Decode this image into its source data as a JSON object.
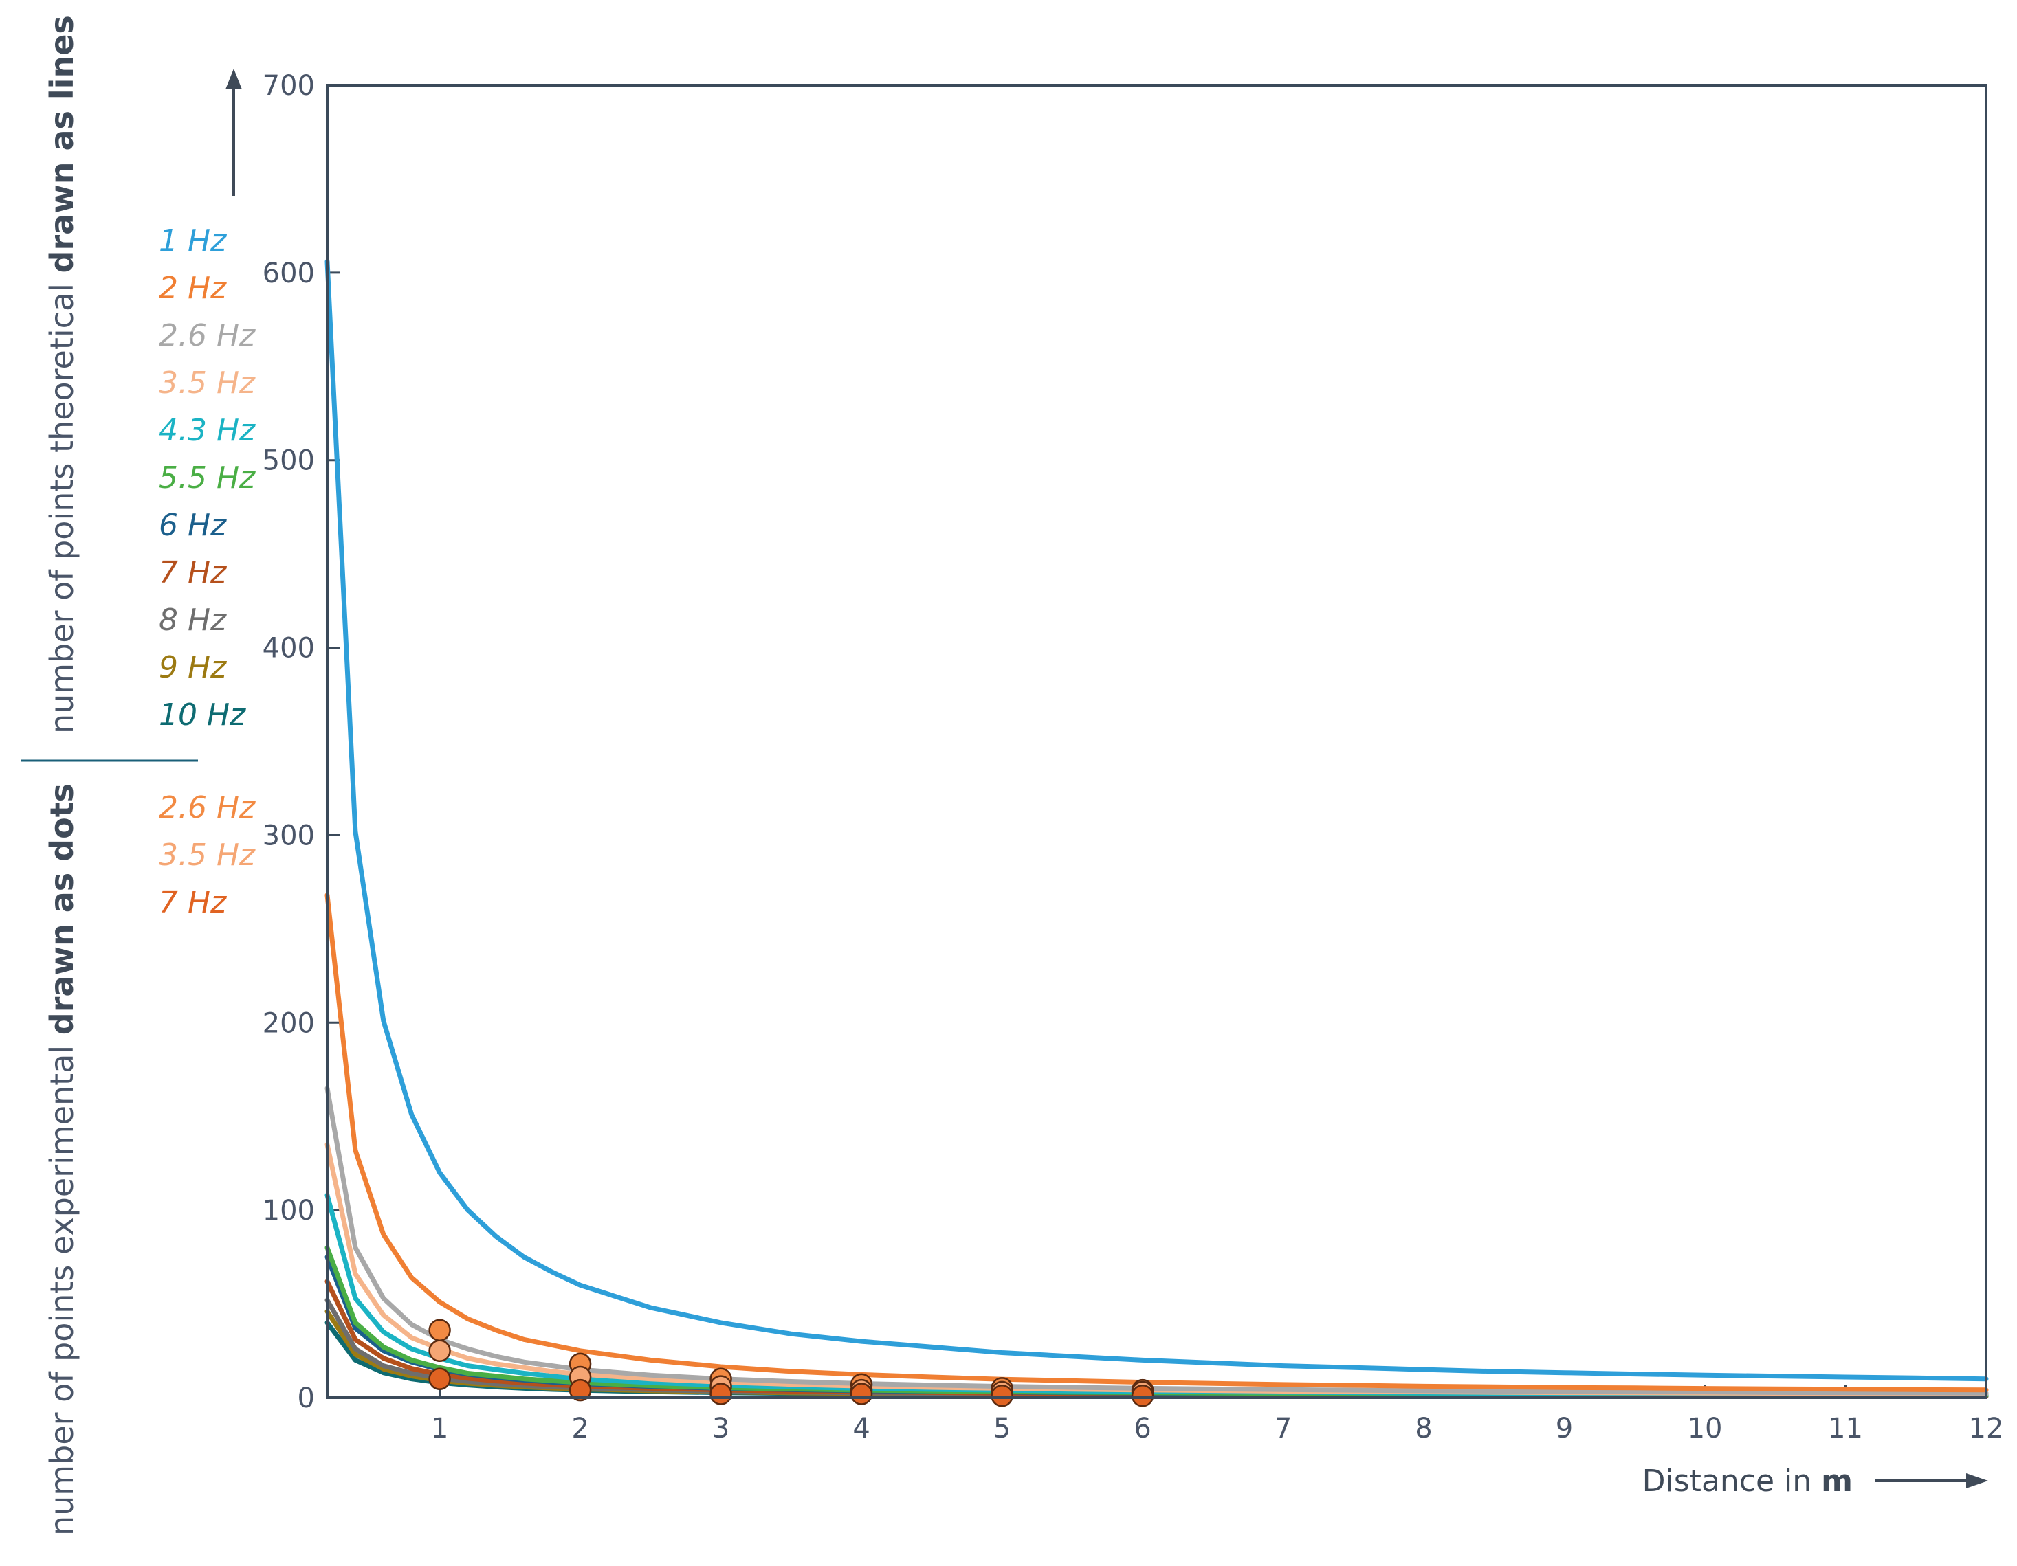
{
  "chart_data": {
    "type": "line",
    "xlabel": {
      "prefix": "Distance in ",
      "bold": "m"
    },
    "ylabel_lines": {
      "text": "number of points theoretical ",
      "bold": "drawn as lines"
    },
    "ylabel_dots": {
      "text": "number of points experimental ",
      "bold": "drawn as dots"
    },
    "xlim": [
      0.2,
      12
    ],
    "ylim": [
      0,
      700
    ],
    "x_ticks": [
      1,
      2,
      3,
      4,
      5,
      6,
      7,
      8,
      9,
      10,
      11,
      12
    ],
    "y_ticks": [
      0,
      100,
      200,
      300,
      400,
      500,
      600,
      700
    ],
    "grid": false,
    "legend_lines_placement": "left, beside the upper y-axis",
    "legend_dots_placement": "left, beside the lower y-axis",
    "x": [
      0.2,
      0.4,
      0.6,
      0.8,
      1,
      1.2,
      1.4,
      1.6,
      1.8,
      2,
      2.5,
      3,
      3.5,
      4,
      4.5,
      5,
      5.5,
      6,
      6.5,
      7,
      7.5,
      8,
      8.5,
      9,
      9.5,
      10,
      10.5,
      11,
      11.5,
      12
    ],
    "series": [
      {
        "name": "1 Hz",
        "color": "#2e9fd9",
        "values": [
          606,
          302,
          201,
          151,
          120,
          100,
          86,
          75,
          67,
          60,
          48,
          40,
          34,
          30,
          27,
          24,
          22,
          20,
          18.5,
          17,
          16,
          15,
          14,
          13.3,
          12.6,
          12,
          11.5,
          11,
          10.5,
          10
        ]
      },
      {
        "name": "2 Hz",
        "color": "#f07f33",
        "values": [
          268,
          132,
          87,
          64,
          51,
          42,
          36,
          31,
          28,
          25,
          20,
          16.5,
          14,
          12.3,
          11,
          9.8,
          9,
          8.2,
          7.6,
          7,
          6.6,
          6.1,
          5.8,
          5.4,
          5.2,
          4.9,
          4.7,
          4.5,
          4.3,
          4.1
        ]
      },
      {
        "name": "2.6 Hz",
        "color": "#a8a8a8",
        "values": [
          165,
          80,
          53,
          39,
          31,
          26,
          22,
          19,
          17,
          15,
          12,
          10,
          8.6,
          7.5,
          6.7,
          6,
          5.5,
          5,
          4.6,
          4.3,
          4,
          3.7,
          3.5,
          3.3,
          3.1,
          3,
          2.8,
          2.7,
          2.6,
          2.5
        ]
      },
      {
        "name": "3.5 Hz",
        "color": "#f5b48a",
        "values": [
          135,
          66,
          44,
          32,
          26,
          21,
          18,
          16,
          14,
          12.5,
          10,
          8.3,
          7.1,
          6.2,
          5.5,
          5,
          4.5,
          4.1,
          3.8,
          3.5,
          3.3,
          3.1,
          2.9,
          2.7,
          2.6,
          2.5,
          2.4,
          2.3,
          2.2,
          2.1
        ]
      },
      {
        "name": "4.3 Hz",
        "color": "#1bb3c4",
        "values": [
          108,
          53,
          35,
          26,
          21,
          17,
          15,
          13,
          11.5,
          10,
          8,
          6.7,
          5.7,
          5,
          4.4,
          4,
          3.6,
          3.3,
          3.1,
          2.9,
          2.7,
          2.5,
          2.4,
          2.2,
          2.1,
          2,
          1.9,
          1.8,
          1.7,
          1.7
        ]
      },
      {
        "name": "5.5 Hz",
        "color": "#4aae45",
        "values": [
          80,
          40,
          27,
          20,
          16,
          13,
          11.5,
          10,
          9,
          8,
          6.4,
          5.3,
          4.6,
          4,
          3.6,
          3.2,
          2.9,
          2.7,
          2.5,
          2.3,
          2.1,
          2,
          1.9,
          1.8,
          1.7,
          1.6,
          1.5,
          1.5,
          1.4,
          1.3
        ]
      },
      {
        "name": "6 Hz",
        "color": "#1b5f8c",
        "values": [
          75,
          37,
          25,
          19,
          15,
          12.5,
          10.7,
          9.4,
          8.3,
          7.5,
          6,
          5,
          4.3,
          3.7,
          3.3,
          3,
          2.7,
          2.5,
          2.3,
          2.1,
          2,
          1.9,
          1.8,
          1.7,
          1.6,
          1.5,
          1.4,
          1.4,
          1.3,
          1.2
        ]
      },
      {
        "name": "7 Hz",
        "color": "#b5501c",
        "values": [
          62,
          31,
          21,
          15.5,
          12.4,
          10.3,
          8.9,
          7.8,
          6.9,
          6.2,
          5,
          4.1,
          3.5,
          3.1,
          2.8,
          2.5,
          2.3,
          2.1,
          1.9,
          1.8,
          1.7,
          1.6,
          1.5,
          1.4,
          1.3,
          1.2,
          1.2,
          1.1,
          1.1,
          1
        ]
      },
      {
        "name": "8 Hz",
        "color": "#6e6e6e",
        "values": [
          52,
          26,
          17,
          13,
          10.4,
          8.7,
          7.4,
          6.5,
          5.8,
          5.2,
          4.2,
          3.5,
          3,
          2.6,
          2.3,
          2.1,
          1.9,
          1.7,
          1.6,
          1.5,
          1.4,
          1.3,
          1.2,
          1.2,
          1.1,
          1,
          1,
          0.9,
          0.9,
          0.9
        ]
      },
      {
        "name": "9 Hz",
        "color": "#9c7a12",
        "values": [
          46,
          23,
          15.3,
          11.5,
          9.2,
          7.7,
          6.6,
          5.7,
          5.1,
          4.6,
          3.7,
          3.1,
          2.6,
          2.3,
          2,
          1.8,
          1.7,
          1.5,
          1.4,
          1.3,
          1.2,
          1.2,
          1.1,
          1,
          1,
          0.9,
          0.9,
          0.8,
          0.8,
          0.8
        ]
      },
      {
        "name": "10 Hz",
        "color": "#0e6b72",
        "values": [
          40,
          20,
          13.3,
          10,
          8,
          6.7,
          5.7,
          5,
          4.4,
          4,
          3.2,
          2.7,
          2.3,
          2,
          1.8,
          1.6,
          1.5,
          1.3,
          1.2,
          1.1,
          1.1,
          1,
          0.9,
          0.9,
          0.8,
          0.8,
          0.8,
          0.7,
          0.7,
          0.7
        ]
      }
    ],
    "dots": [
      {
        "name": "2.6 Hz",
        "color": "#f28a43",
        "points": [
          [
            1,
            36
          ],
          [
            2,
            18
          ],
          [
            3,
            10
          ],
          [
            4,
            7
          ],
          [
            5,
            5
          ],
          [
            6,
            4
          ]
        ]
      },
      {
        "name": "3.5 Hz",
        "color": "#f5a674",
        "points": [
          [
            1,
            25
          ],
          [
            2,
            11
          ],
          [
            3,
            6
          ],
          [
            4,
            4
          ],
          [
            5,
            3
          ],
          [
            6,
            3
          ]
        ]
      },
      {
        "name": "7 Hz",
        "color": "#e06322",
        "points": [
          [
            1,
            10
          ],
          [
            2,
            4
          ],
          [
            3,
            2
          ],
          [
            4,
            2
          ],
          [
            5,
            1
          ],
          [
            6,
            1
          ]
        ]
      }
    ]
  }
}
